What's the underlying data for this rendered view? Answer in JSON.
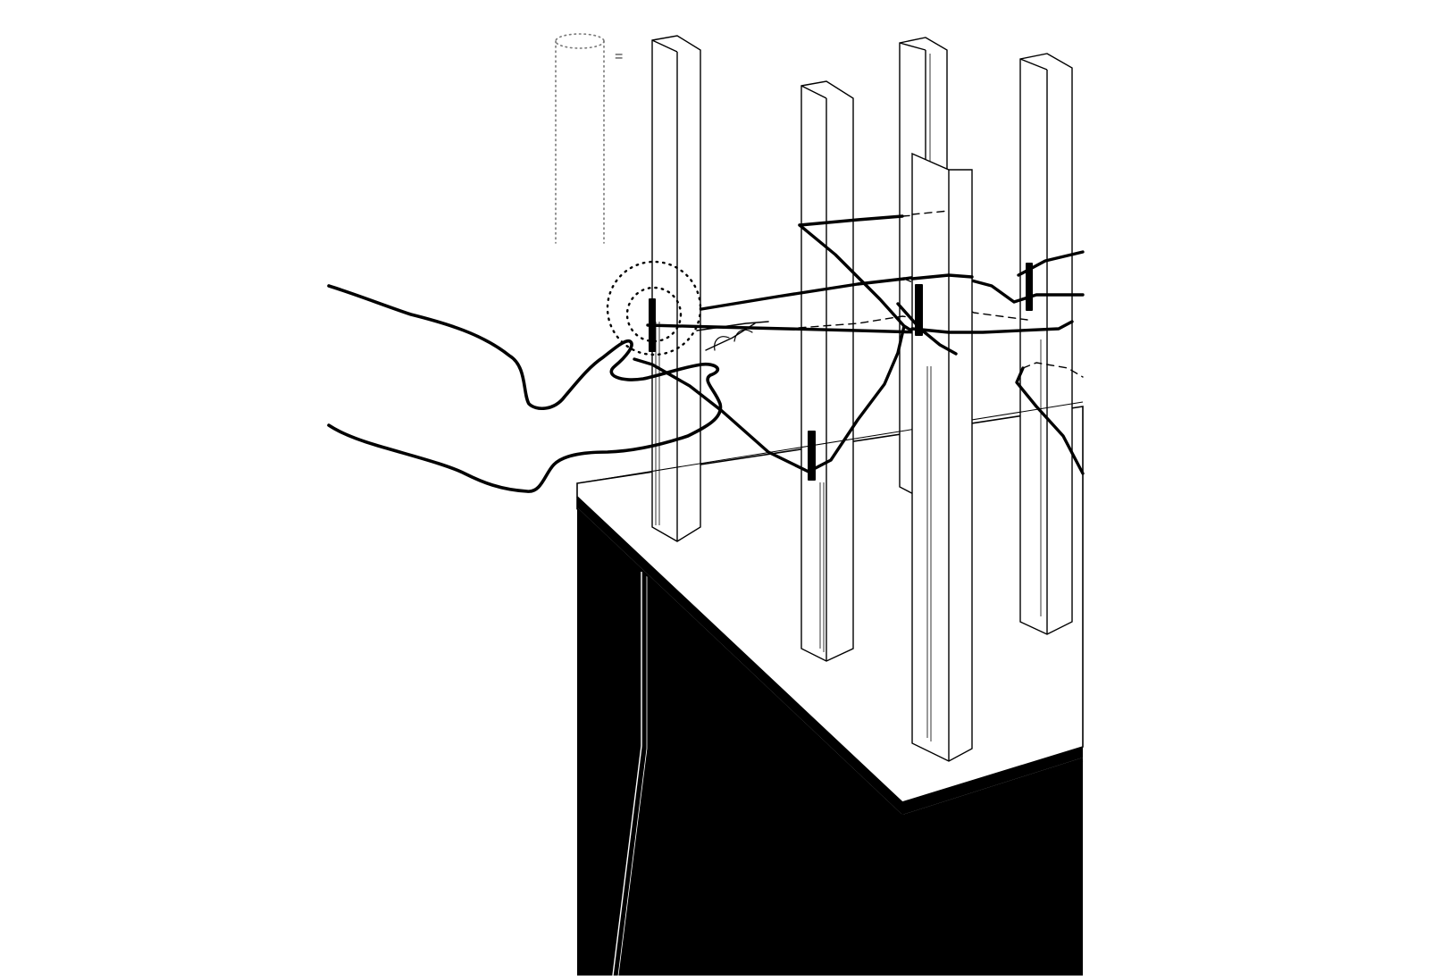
{
  "figure": {
    "equals_glyph": "=",
    "colors": {
      "background": "#ffffff",
      "ink": "#000000",
      "hint": "#777777"
    },
    "elements": [
      "table-block-icon",
      "table-top-slab",
      "post",
      "string-loop",
      "string-knot",
      "hand-icon",
      "touch-ripple",
      "cylinder-icon"
    ]
  }
}
